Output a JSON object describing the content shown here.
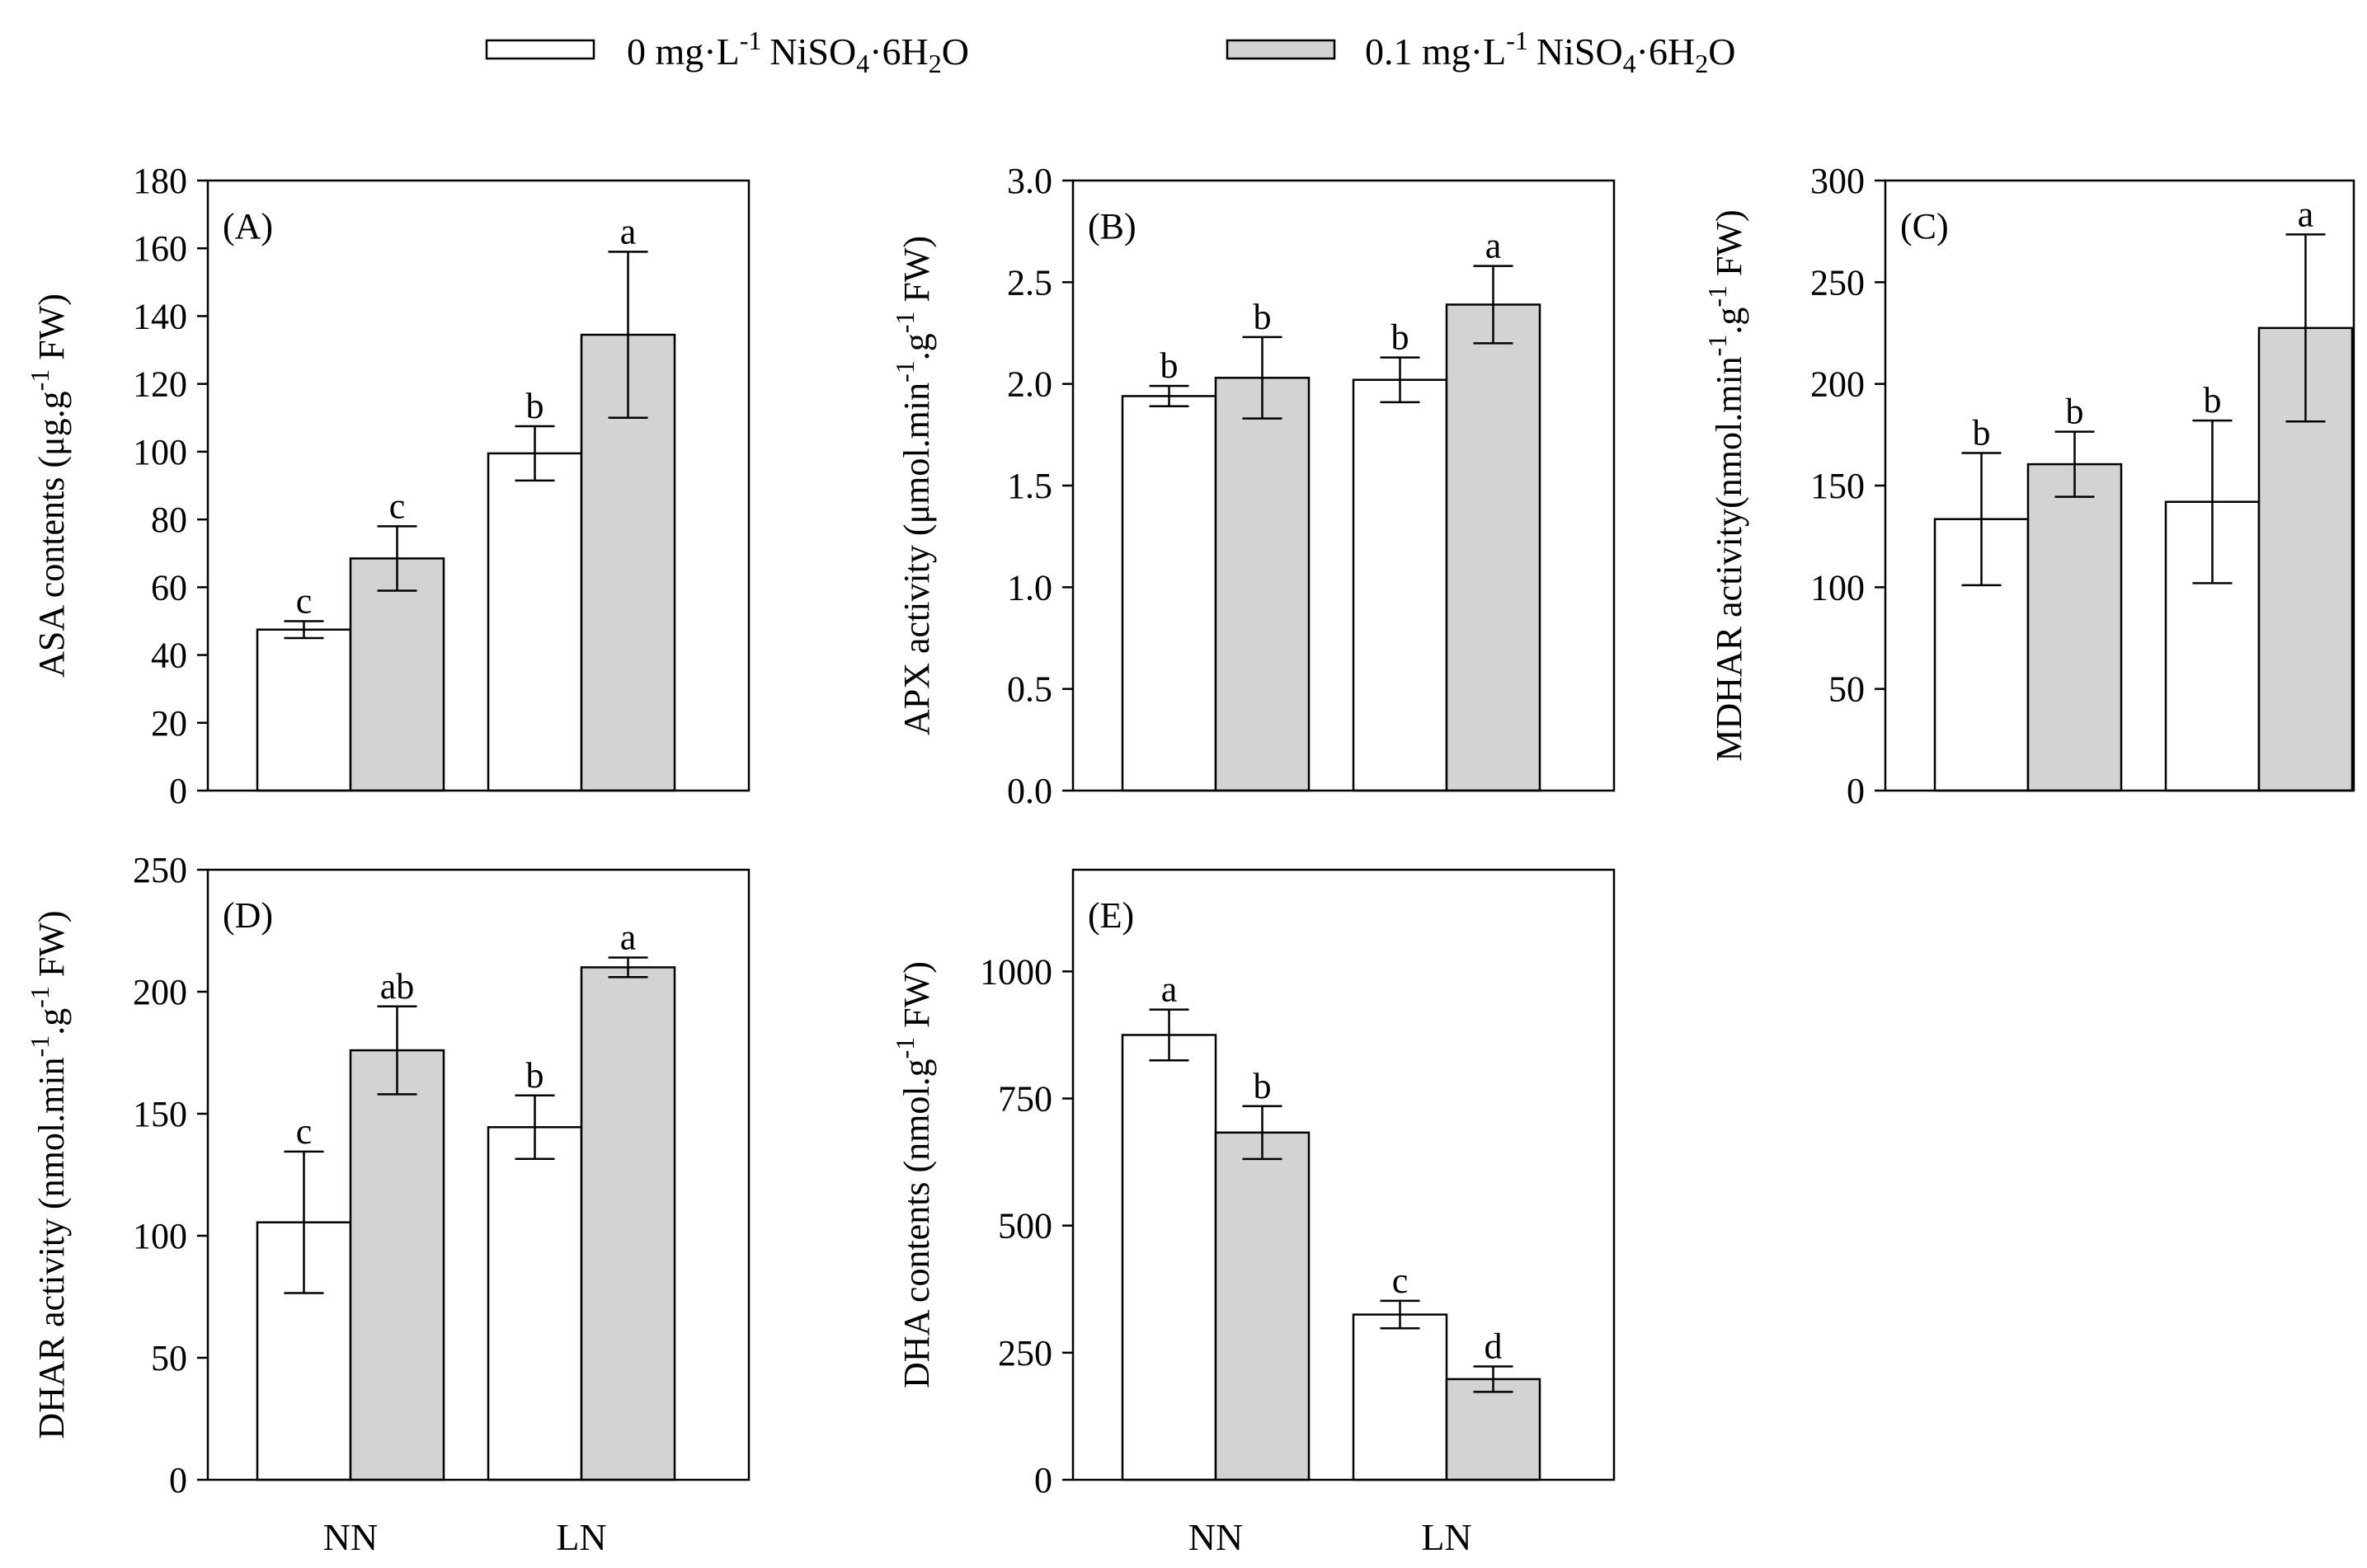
{
  "legend": {
    "items": [
      {
        "key": "control",
        "text": "0 mg·L",
        "sup": "-1",
        "compound": "NiSO",
        "sub1": "4",
        "mid": "·6H",
        "sub2": "2",
        "end": "O",
        "color": "#ffffff"
      },
      {
        "key": "ni",
        "text": "0.1 mg·L",
        "sup": "-1",
        "compound": "NiSO",
        "sub1": "4",
        "mid": "·6H",
        "sub2": "2",
        "end": "O",
        "color": "#d3d3d3"
      }
    ]
  },
  "chart_data": [
    {
      "type": "bar",
      "tag": "(A)",
      "categories": [
        "NN",
        "LN"
      ],
      "show_categories": false,
      "ylim": [
        0,
        180
      ],
      "yticks": [
        "0",
        "20",
        "40",
        "60",
        "80",
        "100",
        "120",
        "140",
        "160",
        "180"
      ],
      "ylabel": {
        "main": "ASA contents (μg.g",
        "sup": "-1",
        "tail": " FW)"
      },
      "series": [
        {
          "name": "0 mg·L-1 NiSO4·6H2O",
          "color": "#ffffff",
          "values": [
            47.5,
            99.5
          ],
          "errors": [
            2.5,
            8
          ],
          "letters": [
            "c",
            "b"
          ]
        },
        {
          "name": "0.1 mg·L-1 NiSO4·6H2O",
          "color": "#d3d3d3",
          "values": [
            68.5,
            134.5
          ],
          "errors": [
            9.5,
            24.5
          ],
          "letters": [
            "c",
            "a"
          ]
        }
      ]
    },
    {
      "type": "bar",
      "tag": "(B)",
      "categories": [
        "NN",
        "LN"
      ],
      "show_categories": false,
      "ylim": [
        0,
        3
      ],
      "yticks": [
        "0.0",
        "0.5",
        "1.0",
        "1.5",
        "2.0",
        "2.5",
        "3.0"
      ],
      "ylabel": {
        "main": "APX activity (μmol.min",
        "sup": "-1",
        "tail": ".g",
        "sup2": "-1",
        "tail2": " FW)"
      },
      "series": [
        {
          "name": "0 mg·L-1 NiSO4·6H2O",
          "color": "#ffffff",
          "values": [
            1.94,
            2.02
          ],
          "errors": [
            0.05,
            0.11
          ],
          "letters": [
            "b",
            "b"
          ]
        },
        {
          "name": "0.1 mg·L-1 NiSO4·6H2O",
          "color": "#d3d3d3",
          "values": [
            2.03,
            2.39
          ],
          "errors": [
            0.2,
            0.19
          ],
          "letters": [
            "b",
            "a"
          ]
        }
      ]
    },
    {
      "type": "bar",
      "tag": "(C)",
      "categories": [
        "NN",
        "LN"
      ],
      "show_categories": false,
      "ylim": [
        0,
        300
      ],
      "yticks": [
        "0",
        "50",
        "100",
        "150",
        "200",
        "250",
        "300"
      ],
      "ylabel": {
        "main": "MDHAR activity(nmol.min",
        "sup": "-1",
        "tail": ".g",
        "sup2": "-1",
        "tail2": " FW)"
      },
      "series": [
        {
          "name": "0 mg·L-1 NiSO4·6H2O",
          "color": "#ffffff",
          "values": [
            133.5,
            142
          ],
          "errors": [
            32.5,
            40
          ],
          "letters": [
            "b",
            "b"
          ]
        },
        {
          "name": "0.1 mg·L-1 NiSO4·6H2O",
          "color": "#d3d3d3",
          "values": [
            160.5,
            227.5
          ],
          "errors": [
            16,
            46
          ],
          "letters": [
            "b",
            "a"
          ]
        }
      ]
    },
    {
      "type": "bar",
      "tag": "(D)",
      "categories": [
        "NN",
        "LN"
      ],
      "show_categories": true,
      "ylim": [
        0,
        250
      ],
      "yticks": [
        "0",
        "50",
        "100",
        "150",
        "200",
        "250"
      ],
      "ylabel": {
        "main": "DHAR activity (nmol.min",
        "sup": "-1",
        "tail": ".g",
        "sup2": "-1",
        "tail2": " FW)"
      },
      "series": [
        {
          "name": "0 mg·L-1 NiSO4·6H2O",
          "color": "#ffffff",
          "values": [
            105.5,
            144.5
          ],
          "errors": [
            29,
            13
          ],
          "letters": [
            "c",
            "b"
          ]
        },
        {
          "name": "0.1 mg·L-1 NiSO4·6H2O",
          "color": "#d3d3d3",
          "values": [
            176,
            210
          ],
          "errors": [
            18,
            4
          ],
          "letters": [
            "ab",
            "a"
          ]
        }
      ]
    },
    {
      "type": "bar",
      "tag": "(E)",
      "categories": [
        "NN",
        "LN"
      ],
      "show_categories": true,
      "ylim": [
        0,
        1200
      ],
      "yticks": [
        "0",
        "250",
        "500",
        "750",
        "1000"
      ],
      "ylabel": {
        "main": "DHA contents (nmol.g",
        "sup": "-1",
        "tail": " FW)"
      },
      "series": [
        {
          "name": "0 mg·L-1 NiSO4·6H2O",
          "color": "#ffffff",
          "values": [
            875,
            325
          ],
          "errors": [
            50,
            27
          ],
          "letters": [
            "a",
            "c"
          ]
        },
        {
          "name": "0.1 mg·L-1 NiSO4·6H2O",
          "color": "#d3d3d3",
          "values": [
            683,
            198
          ],
          "errors": [
            52,
            25
          ],
          "letters": [
            "b",
            "d"
          ]
        }
      ]
    }
  ]
}
